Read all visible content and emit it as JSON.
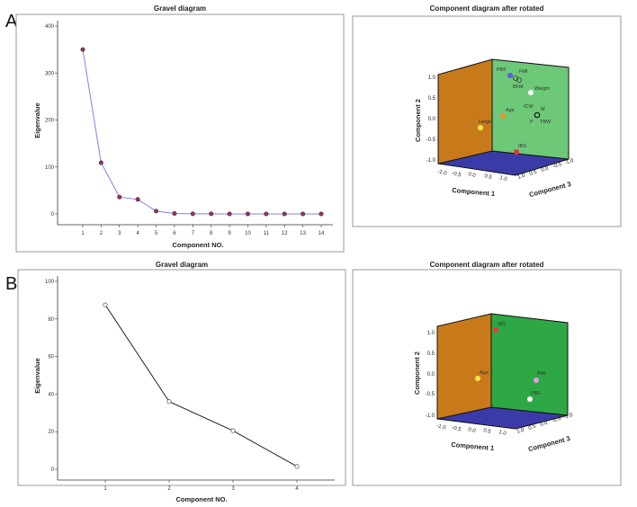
{
  "panels": [
    {
      "letter": "A"
    },
    {
      "letter": "B"
    }
  ],
  "chart_data": [
    {
      "type": "line",
      "panel": "A",
      "title": "Gravel diagram",
      "xlabel": "Component NO.",
      "ylabel": "Eigenvalue",
      "x": [
        1,
        2,
        3,
        4,
        5,
        6,
        7,
        8,
        9,
        10,
        11,
        12,
        13,
        14
      ],
      "values": [
        350,
        109,
        36,
        31,
        6,
        1,
        0.3,
        0.2,
        0.1,
        0.1,
        0.1,
        0.05,
        0.03,
        0.01
      ],
      "ylim": [
        0,
        400
      ],
      "yticks": [
        0,
        100,
        200,
        300,
        400
      ],
      "line_color": "#8080ee",
      "marker_color": "#a0305a"
    },
    {
      "type": "scatter3d",
      "panel": "A",
      "title": "Component diagram after rotated",
      "xlabel": "Component 1",
      "ylabel": "Component 2",
      "zlabel": "Component 3",
      "yticks": [
        "1.0",
        "0.5",
        "0.0",
        "-0.5",
        "-1.0"
      ],
      "xticks": [
        "-1.0",
        "-0.5",
        "0.0",
        "0.5",
        "1.0"
      ],
      "zticks": [
        "1.0",
        "0.5",
        "0.0",
        "-0.5",
        "-1.0"
      ],
      "points": [
        {
          "label": "PBF",
          "color": "#5b5bf0"
        },
        {
          "label": "FMI",
          "color": "#6fc87a"
        },
        {
          "label": "BFM",
          "color": "#6fc87a"
        },
        {
          "label": "Weight",
          "color": "#ffffff"
        },
        {
          "label": "ICW",
          "color": "#6fc87a"
        },
        {
          "label": "M",
          "color": "#6fc87a"
        },
        {
          "label": "P",
          "color": "#6fc87a"
        },
        {
          "label": "TBW",
          "color": "#6fc87a"
        },
        {
          "label": "Age",
          "color": "#f0902a"
        },
        {
          "label": "Height",
          "color": "#f7e84a"
        },
        {
          "label": "IBS",
          "color": "#ee3333"
        }
      ]
    },
    {
      "type": "line",
      "panel": "B",
      "title": "Gravel diagram",
      "xlabel": "Component NO.",
      "ylabel": "Eigenvalue",
      "x": [
        1,
        2,
        3,
        4
      ],
      "values": [
        87.5,
        36,
        20.5,
        1.5
      ],
      "ylim": [
        0,
        100
      ],
      "yticks": [
        0,
        20,
        40,
        60,
        80,
        100
      ],
      "line_color": "#222222",
      "marker_color": "#ffffff"
    },
    {
      "type": "scatter3d",
      "panel": "B",
      "title": "Component diagram after rotated",
      "xlabel": "Component 1",
      "ylabel": "Component 2",
      "zlabel": "Component 3",
      "yticks": [
        "1.0",
        "0.5",
        "0.0",
        "-0.5",
        "-1.0"
      ],
      "xticks": [
        "-1.0",
        "-0.5",
        "0.0",
        "0.5",
        "1.0"
      ],
      "zticks": [
        "1.0",
        "0.5",
        "0.0",
        "-0.5",
        "-1.0"
      ],
      "points": [
        {
          "label": "IBS",
          "color": "#ee3333"
        },
        {
          "label": "Age",
          "color": "#f7e84a"
        },
        {
          "label": "BMI",
          "color": "#e0a0e0"
        },
        {
          "label": "PBF",
          "color": "#ffffff"
        }
      ]
    }
  ]
}
